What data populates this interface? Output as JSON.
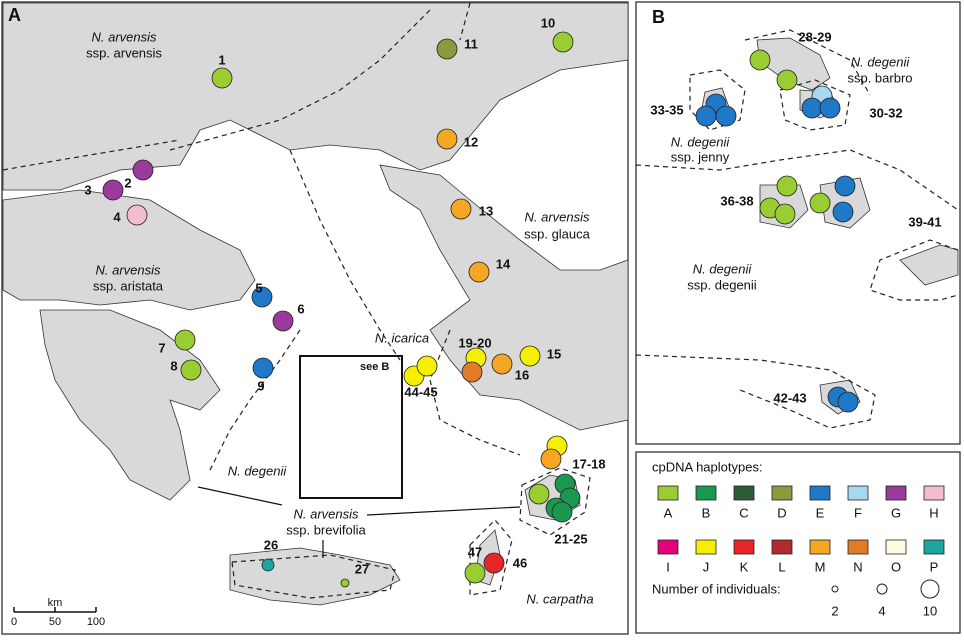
{
  "panel_a": {
    "letter": "A",
    "region_labels": [
      [
        "N. arvensis",
        "ssp. arvensis"
      ],
      [
        "N. arvensis",
        "ssp. aristata"
      ],
      [
        "N. arvensis",
        "ssp. glauca"
      ],
      [
        "N. icarica"
      ],
      [
        "N. degenii"
      ],
      [
        "N. arvensis",
        "ssp. brevifolia"
      ],
      [
        "N. carpatha"
      ]
    ],
    "sites": [
      "1",
      "2",
      "3",
      "4",
      "5",
      "6",
      "7",
      "8",
      "9",
      "10",
      "11",
      "12",
      "13",
      "14",
      "15",
      "16",
      "19-20",
      "44-45",
      "17-18",
      "21-25",
      "26",
      "27",
      "46",
      "47"
    ],
    "inset_label": "see B",
    "scale": {
      "unit": "km",
      "ticks": [
        "0",
        "50",
        "100"
      ]
    }
  },
  "panel_b": {
    "letter": "B",
    "region_labels": [
      [
        "N. degenii",
        "ssp. barbro"
      ],
      [
        "N. degenii",
        "ssp. jenny"
      ],
      [
        "N. degenii",
        "ssp. degenii"
      ]
    ],
    "sites": [
      "28-29",
      "33-35",
      "30-32",
      "36-38",
      "39-41",
      "42-43"
    ]
  },
  "legend": {
    "title": "cpDNA haplotypes:",
    "haplotypes": [
      {
        "label": "A",
        "color": "#9acd32"
      },
      {
        "label": "B",
        "color": "#1a9850"
      },
      {
        "label": "C",
        "color": "#2d5a37"
      },
      {
        "label": "D",
        "color": "#8c9a3c"
      },
      {
        "label": "E",
        "color": "#1f78c8"
      },
      {
        "label": "F",
        "color": "#a6d8f0"
      },
      {
        "label": "G",
        "color": "#9b3a9b"
      },
      {
        "label": "H",
        "color": "#f4bcd0"
      },
      {
        "label": "I",
        "color": "#e6007e"
      },
      {
        "label": "J",
        "color": "#f5f000"
      },
      {
        "label": "K",
        "color": "#e8262a"
      },
      {
        "label": "L",
        "color": "#b22a2e"
      },
      {
        "label": "M",
        "color": "#f5a623"
      },
      {
        "label": "N",
        "color": "#e07b28"
      },
      {
        "label": "O",
        "color": "#fffbe0"
      },
      {
        "label": "P",
        "color": "#1aa7a0"
      }
    ],
    "size_title": "Number of individuals:",
    "sizes": [
      2,
      4,
      10
    ]
  }
}
